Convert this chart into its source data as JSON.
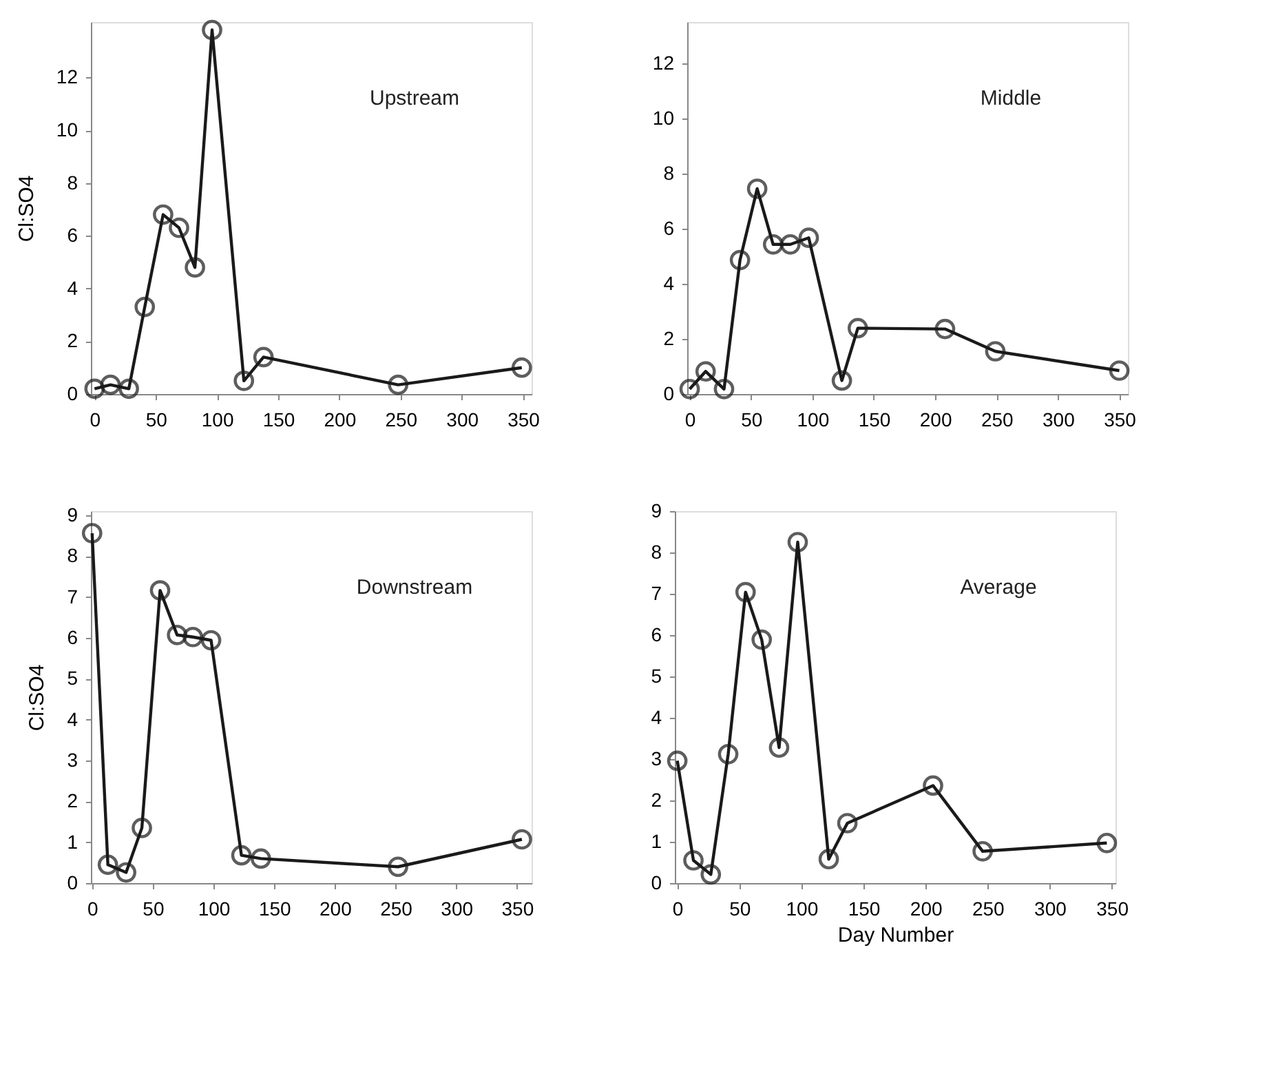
{
  "chart_data": [
    {
      "type": "line",
      "ylabel": "Cl:SO4",
      "annotations": [
        "Upstream"
      ],
      "color": "#1a1a1a",
      "marker": "circle",
      "line_style": "solid",
      "grid": false,
      "x": [
        0,
        13,
        28,
        41,
        56,
        69,
        82,
        96,
        122,
        138,
        248,
        349
      ],
      "values": [
        0.2,
        0.35,
        0.2,
        3.3,
        6.8,
        6.3,
        4.8,
        13.8,
        0.5,
        1.4,
        0.35,
        1.0
      ],
      "xlim": [
        -3,
        357
      ],
      "xticks": [
        0,
        50,
        100,
        150,
        200,
        250,
        300,
        350
      ],
      "ylim": [
        0,
        14.1
      ],
      "yticks": [
        0,
        2,
        4,
        6,
        8,
        10,
        12
      ]
    },
    {
      "type": "line",
      "annotations": [
        "Middle"
      ],
      "color": "#1a1a1a",
      "marker": "circle",
      "line_style": "solid",
      "grid": false,
      "x": [
        0,
        13,
        28,
        41,
        55,
        68,
        82,
        97,
        124,
        137,
        208,
        249,
        350
      ],
      "values": [
        0.18,
        0.82,
        0.18,
        4.86,
        7.45,
        5.43,
        5.43,
        5.67,
        0.49,
        2.39,
        2.36,
        1.55,
        0.85
      ],
      "xlim": [
        -2,
        357
      ],
      "xticks": [
        0,
        50,
        100,
        150,
        200,
        250,
        300,
        350
      ],
      "ylim": [
        0,
        13.5
      ],
      "yticks": [
        0,
        2,
        4,
        6,
        8,
        10,
        12
      ]
    },
    {
      "type": "line",
      "ylabel": "Cl:SO4",
      "annotations": [
        "Downstream"
      ],
      "color": "#1a1a1a",
      "marker": "circle",
      "line_style": "solid",
      "grid": false,
      "x": [
        0,
        13,
        28,
        41,
        56,
        70,
        83,
        98,
        123,
        139,
        252,
        354
      ],
      "values": [
        8.56,
        0.45,
        0.26,
        1.35,
        7.16,
        6.07,
        6.02,
        5.94,
        0.68,
        0.6,
        0.4,
        1.07
      ],
      "xlim": [
        -1,
        362
      ],
      "xticks": [
        0,
        50,
        100,
        150,
        200,
        250,
        300,
        350
      ],
      "ylim": [
        0,
        9.1
      ],
      "yticks": [
        0,
        1,
        2,
        3,
        4,
        5,
        6,
        7,
        8,
        9
      ]
    },
    {
      "type": "line",
      "xlabel": "Day Number",
      "annotations": [
        "Average"
      ],
      "color": "#1a1a1a",
      "marker": "circle",
      "line_style": "solid",
      "grid": false,
      "x": [
        0,
        13,
        27,
        41,
        55,
        68,
        82,
        97,
        122,
        137,
        206,
        246,
        346
      ],
      "values": [
        2.96,
        0.55,
        0.21,
        3.12,
        7.04,
        5.89,
        3.28,
        8.25,
        0.58,
        1.45,
        2.36,
        0.77,
        0.97
      ],
      "xlim": [
        -2,
        353
      ],
      "xticks": [
        0,
        50,
        100,
        150,
        200,
        250,
        300,
        350
      ],
      "ylim": [
        0,
        9.0
      ],
      "yticks": [
        0,
        1,
        2,
        3,
        4,
        5,
        6,
        7,
        8,
        9
      ]
    }
  ]
}
